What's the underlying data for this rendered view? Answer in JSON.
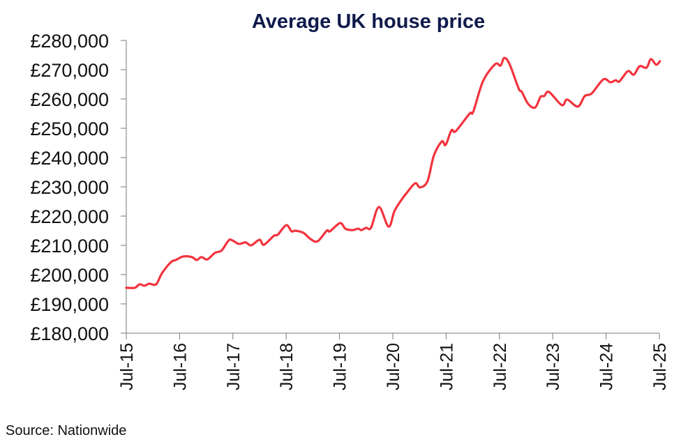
{
  "chart_data": {
    "type": "line",
    "title": "Average UK house price",
    "xlabel": "",
    "ylabel": "",
    "source": "Source: Nationwide",
    "ylim": [
      180000,
      280000
    ],
    "xlim": [
      2015.5,
      2025.5
    ],
    "y_ticks": [
      {
        "value": 180000,
        "label": "£180,000"
      },
      {
        "value": 190000,
        "label": "£190,000"
      },
      {
        "value": 200000,
        "label": "£200,000"
      },
      {
        "value": 210000,
        "label": "£210,000"
      },
      {
        "value": 220000,
        "label": "£220,000"
      },
      {
        "value": 230000,
        "label": "£230,000"
      },
      {
        "value": 240000,
        "label": "£240,000"
      },
      {
        "value": 250000,
        "label": "£250,000"
      },
      {
        "value": 260000,
        "label": "£260,000"
      },
      {
        "value": 270000,
        "label": "£270,000"
      },
      {
        "value": 280000,
        "label": "£280,000"
      }
    ],
    "x_ticks": [
      {
        "value": 2015.5,
        "label": "Jul-15"
      },
      {
        "value": 2016.5,
        "label": "Jul-16"
      },
      {
        "value": 2017.5,
        "label": "Jul-17"
      },
      {
        "value": 2018.5,
        "label": "Jul-18"
      },
      {
        "value": 2019.5,
        "label": "Jul-19"
      },
      {
        "value": 2020.5,
        "label": "Jul-20"
      },
      {
        "value": 2021.5,
        "label": "Jul-21"
      },
      {
        "value": 2022.5,
        "label": "Jul-22"
      },
      {
        "value": 2023.5,
        "label": "Jul-23"
      },
      {
        "value": 2024.5,
        "label": "Jul-24"
      },
      {
        "value": 2025.5,
        "label": "Jul-25"
      }
    ],
    "grid": false,
    "series": [
      {
        "name": "Average UK house price",
        "color": "#f2333d",
        "points": [
          [
            2015.5,
            195500
          ],
          [
            2015.66,
            195500
          ],
          [
            2015.75,
            196700
          ],
          [
            2015.84,
            196200
          ],
          [
            2015.93,
            196900
          ],
          [
            2016.06,
            196700
          ],
          [
            2016.17,
            200500
          ],
          [
            2016.34,
            204300
          ],
          [
            2016.43,
            205000
          ],
          [
            2016.57,
            206200
          ],
          [
            2016.73,
            206000
          ],
          [
            2016.82,
            205000
          ],
          [
            2016.91,
            206000
          ],
          [
            2017.02,
            205200
          ],
          [
            2017.16,
            207400
          ],
          [
            2017.29,
            208300
          ],
          [
            2017.42,
            211700
          ],
          [
            2017.49,
            211700
          ],
          [
            2017.61,
            210500
          ],
          [
            2017.74,
            211000
          ],
          [
            2017.84,
            210000
          ],
          [
            2018.0,
            211900
          ],
          [
            2018.08,
            210200
          ],
          [
            2018.27,
            213300
          ],
          [
            2018.34,
            213600
          ],
          [
            2018.5,
            216900
          ],
          [
            2018.6,
            214800
          ],
          [
            2018.67,
            215000
          ],
          [
            2018.82,
            214300
          ],
          [
            2018.96,
            212100
          ],
          [
            2019.09,
            211400
          ],
          [
            2019.26,
            215000
          ],
          [
            2019.32,
            214800
          ],
          [
            2019.51,
            217600
          ],
          [
            2019.61,
            215700
          ],
          [
            2019.74,
            215200
          ],
          [
            2019.85,
            215700
          ],
          [
            2019.91,
            215200
          ],
          [
            2020.0,
            216000
          ],
          [
            2020.09,
            216000
          ],
          [
            2020.24,
            223100
          ],
          [
            2020.42,
            216400
          ],
          [
            2020.53,
            221700
          ],
          [
            2020.66,
            225500
          ],
          [
            2020.76,
            227900
          ],
          [
            2020.92,
            231200
          ],
          [
            2021.01,
            229800
          ],
          [
            2021.15,
            231900
          ],
          [
            2021.27,
            240700
          ],
          [
            2021.42,
            245500
          ],
          [
            2021.49,
            244300
          ],
          [
            2021.6,
            249300
          ],
          [
            2021.68,
            249000
          ],
          [
            2021.94,
            255000
          ],
          [
            2022.01,
            255700
          ],
          [
            2022.19,
            266000
          ],
          [
            2022.42,
            271900
          ],
          [
            2022.52,
            271400
          ],
          [
            2022.59,
            274000
          ],
          [
            2022.69,
            271900
          ],
          [
            2022.86,
            263600
          ],
          [
            2022.92,
            262400
          ],
          [
            2023.04,
            258300
          ],
          [
            2023.17,
            257100
          ],
          [
            2023.27,
            260700
          ],
          [
            2023.34,
            261000
          ],
          [
            2023.43,
            262400
          ],
          [
            2023.67,
            257900
          ],
          [
            2023.77,
            259800
          ],
          [
            2023.97,
            257400
          ],
          [
            2024.1,
            261000
          ],
          [
            2024.23,
            261900
          ],
          [
            2024.45,
            266700
          ],
          [
            2024.58,
            265700
          ],
          [
            2024.68,
            266400
          ],
          [
            2024.75,
            266000
          ],
          [
            2024.91,
            269500
          ],
          [
            2025.02,
            268300
          ],
          [
            2025.13,
            271200
          ],
          [
            2025.26,
            270700
          ],
          [
            2025.34,
            273600
          ],
          [
            2025.44,
            271700
          ],
          [
            2025.51,
            272900
          ]
        ]
      }
    ]
  }
}
